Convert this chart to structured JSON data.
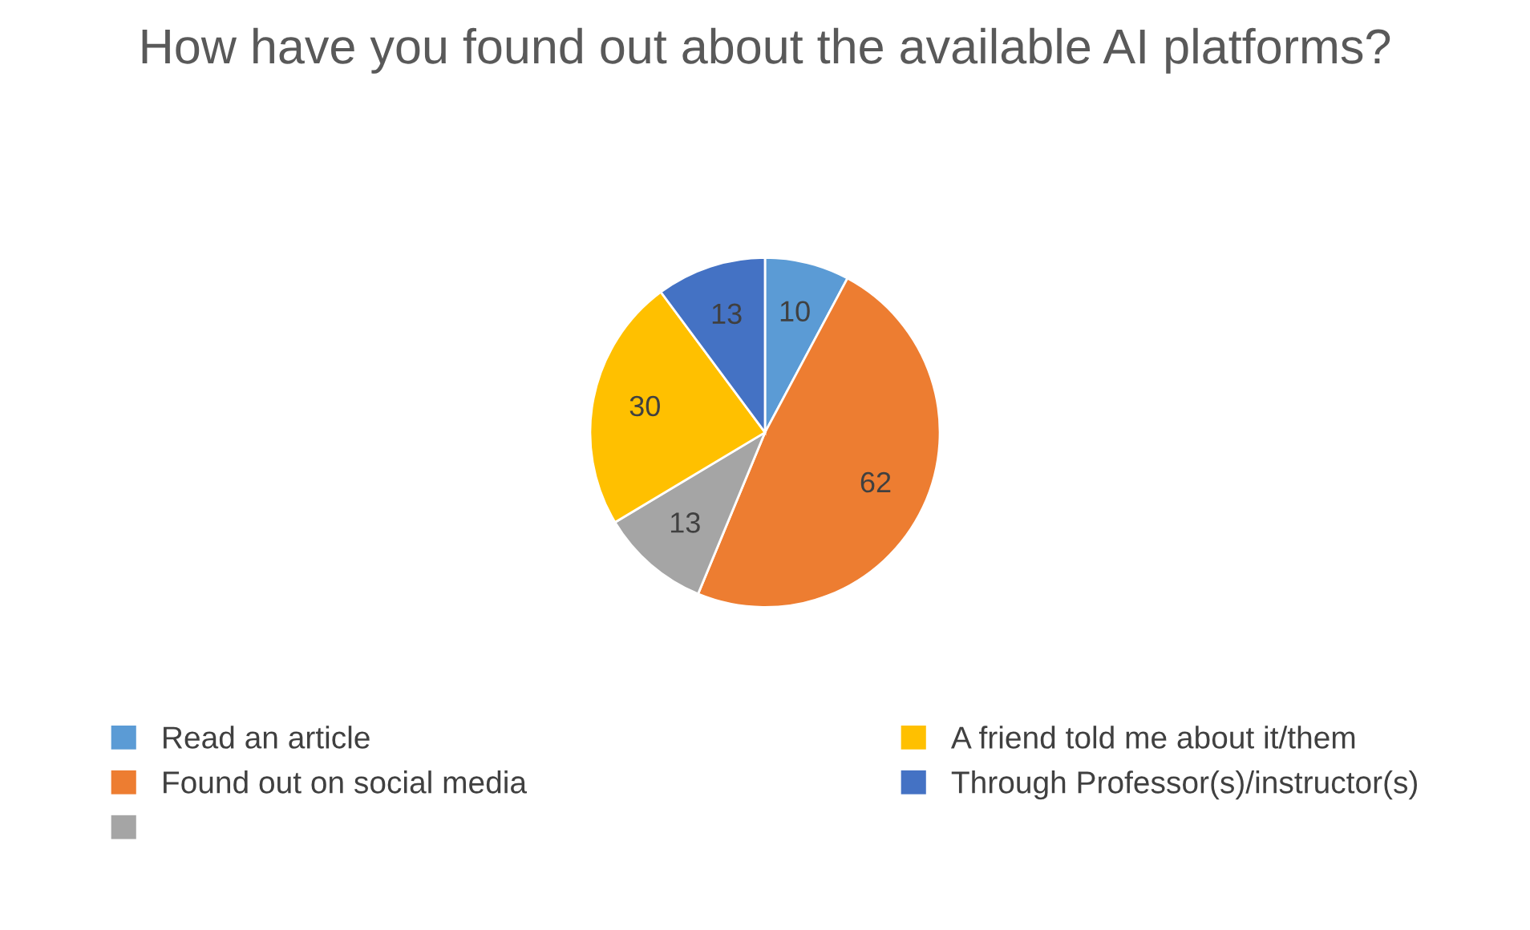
{
  "chart_data": {
    "type": "pie",
    "title": "How have you found out about the available AI platforms?",
    "categories": [
      "Read an article",
      "Found out on social media",
      null,
      "A friend told me about it/them",
      "Through Professor(s)/instructor(s)"
    ],
    "values": [
      10,
      62,
      13,
      30,
      13
    ],
    "colors": [
      "#5b9bd5",
      "#ed7d31",
      "#a5a5a5",
      "#ffc000",
      "#4472c4"
    ],
    "data_labels": true,
    "legend": "bottom"
  }
}
